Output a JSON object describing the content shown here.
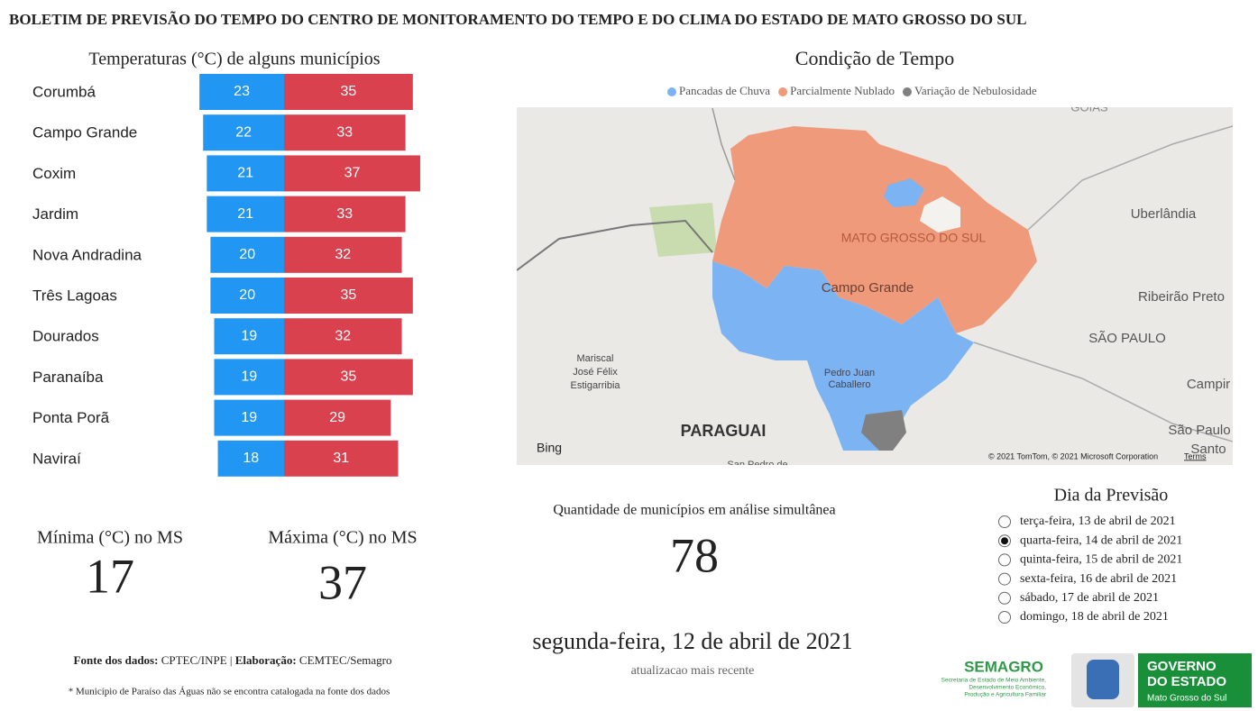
{
  "header": {
    "title": "BOLETIM DE PREVISÃO DO TEMPO DO CENTRO DE MONITORAMENTO DO TEMPO E DO CLIMA DO ESTADO DE MATO GROSSO DO SUL"
  },
  "chart_data": {
    "type": "bar",
    "title": "Temperaturas (°C) de alguns municípios",
    "categories": [
      "Corumbá",
      "Campo Grande",
      "Coxim",
      "Jardim",
      "Nova Andradina",
      "Três Lagoas",
      "Dourados",
      "Paranaíba",
      "Ponta Porã",
      "Naviraí"
    ],
    "series": [
      {
        "color": "#2196f3",
        "values": [
          23,
          22,
          21,
          21,
          20,
          20,
          19,
          19,
          19,
          18
        ]
      },
      {
        "color": "#d9414e",
        "values": [
          35,
          33,
          37,
          33,
          32,
          35,
          32,
          35,
          29,
          31
        ]
      }
    ]
  },
  "map": {
    "title": "Condição de Tempo",
    "legend": [
      {
        "name": "Pancadas de Chuva",
        "color": "#7cb4f3"
      },
      {
        "name": "Parcialmente Nublado",
        "color": "#ef9a7a"
      },
      {
        "name": "Variação de Nebulosidade",
        "color": "#808080"
      }
    ],
    "labels": [
      "GOIÁS",
      "Uberlândia",
      "MATO GROSSO DO SUL",
      "Campo Grande",
      "Ribeirão Preto",
      "SÃO PAULO",
      "Mariscal",
      "José Félix",
      "Estigarribia",
      "Pedro Juan",
      "Caballero",
      "Campir",
      "São Paulo",
      "Santo",
      "PARAGUAI",
      "San Pedro de"
    ],
    "brand": "Bing",
    "copyright": "© 2021 TomTom, © 2021 Microsoft Corporation",
    "terms": "Terms"
  },
  "kpis": {
    "min_label": "Mínima (°C) no MS",
    "min": "17",
    "max_label": "Máxima (°C) no MS",
    "max": "37",
    "count_label": "Quantidade de municípios em análise simultânea",
    "count": "78",
    "date": "segunda-feira, 12 de abril de 2021",
    "date_note": "atualizacao mais recente"
  },
  "day_picker": {
    "title": "Dia da Previsão",
    "selected": 1,
    "options": [
      "terça-feira, 13 de abril de 2021",
      "quarta-feira, 14 de abril de 2021",
      "quinta-feira, 15 de abril de 2021",
      "sexta-feira, 16 de abril de 2021",
      "sábado, 17 de abril de 2021",
      "domingo, 18 de abril de 2021"
    ]
  },
  "footer": {
    "source_label": "Fonte dos dados:",
    "source": " CPTEC/INPE | ",
    "made_label": "Elaboração:",
    "made": " CEMTEC/Semagro",
    "note": "* Município de Paraíso das Águas não se encontra catalogada na fonte dos dados"
  },
  "logos": {
    "semagro": "SEMAGRO",
    "semagro_sub": [
      "Secretaria de Estado de Meio Ambiente,",
      "Desenvolvimento Econômico,",
      "Produção e Agricultura Familiar"
    ],
    "gov_1": "GOVERNO",
    "gov_2": "DO ESTADO",
    "gov_3": "Mato Grosso do Sul"
  }
}
